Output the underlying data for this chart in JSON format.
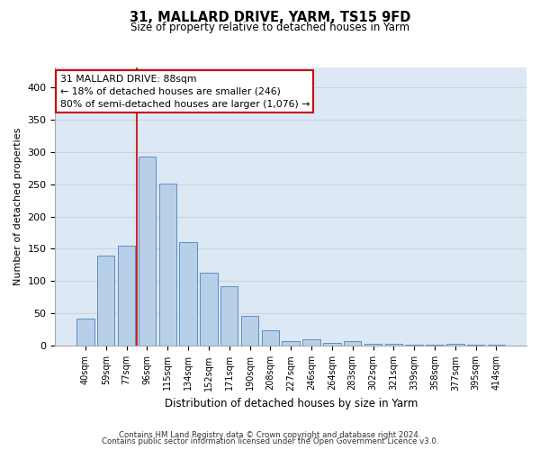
{
  "title": "31, MALLARD DRIVE, YARM, TS15 9FD",
  "subtitle": "Size of property relative to detached houses in Yarm",
  "xlabel": "Distribution of detached houses by size in Yarm",
  "ylabel": "Number of detached properties",
  "categories": [
    "40sqm",
    "59sqm",
    "77sqm",
    "96sqm",
    "115sqm",
    "134sqm",
    "152sqm",
    "171sqm",
    "190sqm",
    "208sqm",
    "227sqm",
    "246sqm",
    "264sqm",
    "283sqm",
    "302sqm",
    "321sqm",
    "339sqm",
    "358sqm",
    "377sqm",
    "395sqm",
    "414sqm"
  ],
  "values": [
    42,
    140,
    155,
    293,
    251,
    160,
    113,
    92,
    46,
    24,
    8,
    10,
    5,
    8,
    3,
    3,
    2,
    2,
    3,
    2,
    2
  ],
  "bar_color": "#b8cfe8",
  "bar_edge_color": "#5b8ec4",
  "annotation_line0": "31 MALLARD DRIVE: 88sqm",
  "annotation_line1": "← 18% of detached houses are smaller (246)",
  "annotation_line2": "80% of semi-detached houses are larger (1,076) →",
  "annotation_box_color": "#ffffff",
  "annotation_box_edge": "#cc0000",
  "grid_color": "#c8d4e4",
  "background_color": "#dce8f4",
  "footer1": "Contains HM Land Registry data © Crown copyright and database right 2024.",
  "footer2": "Contains public sector information licensed under the Open Government Licence v3.0.",
  "ylim": [
    0,
    430
  ],
  "yticks": [
    0,
    50,
    100,
    150,
    200,
    250,
    300,
    350,
    400
  ]
}
